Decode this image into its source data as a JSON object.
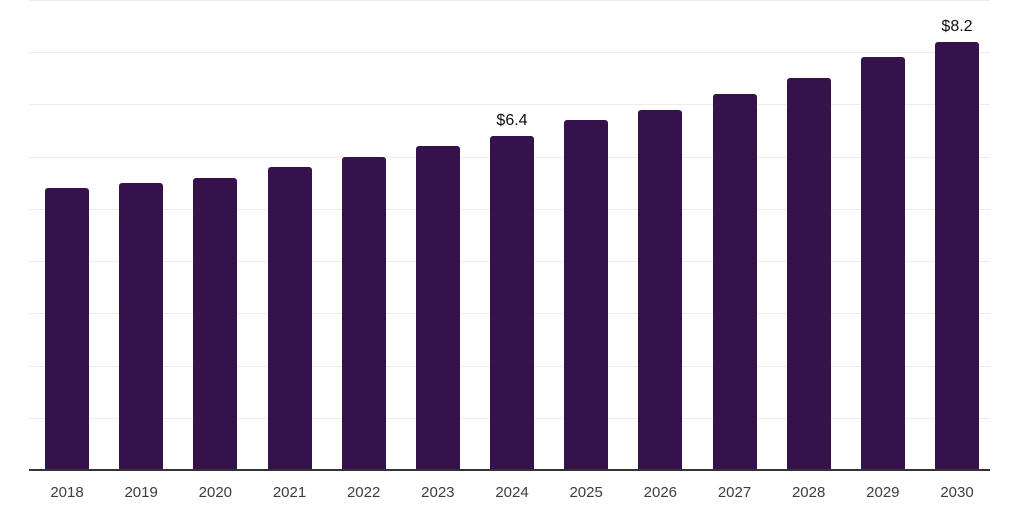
{
  "chart_data": {
    "type": "bar",
    "title": "",
    "xlabel": "",
    "ylabel": "",
    "categories": [
      "2018",
      "2019",
      "2020",
      "2021",
      "2022",
      "2023",
      "2024",
      "2025",
      "2026",
      "2027",
      "2028",
      "2029",
      "2030"
    ],
    "values": [
      5.4,
      5.5,
      5.6,
      5.8,
      6.0,
      6.2,
      6.4,
      6.7,
      6.9,
      7.2,
      7.5,
      7.9,
      8.2
    ],
    "annotations": [
      {
        "category": "2024",
        "text": "$6.4"
      },
      {
        "category": "2030",
        "text": "$8.2"
      }
    ],
    "ylim": [
      0,
      9
    ],
    "gridline_step": 1,
    "grid": true,
    "legend_position": "none"
  },
  "colors": {
    "bar": "#351249",
    "gridline": "#ededed",
    "axis": "#333333",
    "tick_label": "#3d3d3d",
    "value_label": "#0d0d0d",
    "background": "#ffffff"
  }
}
